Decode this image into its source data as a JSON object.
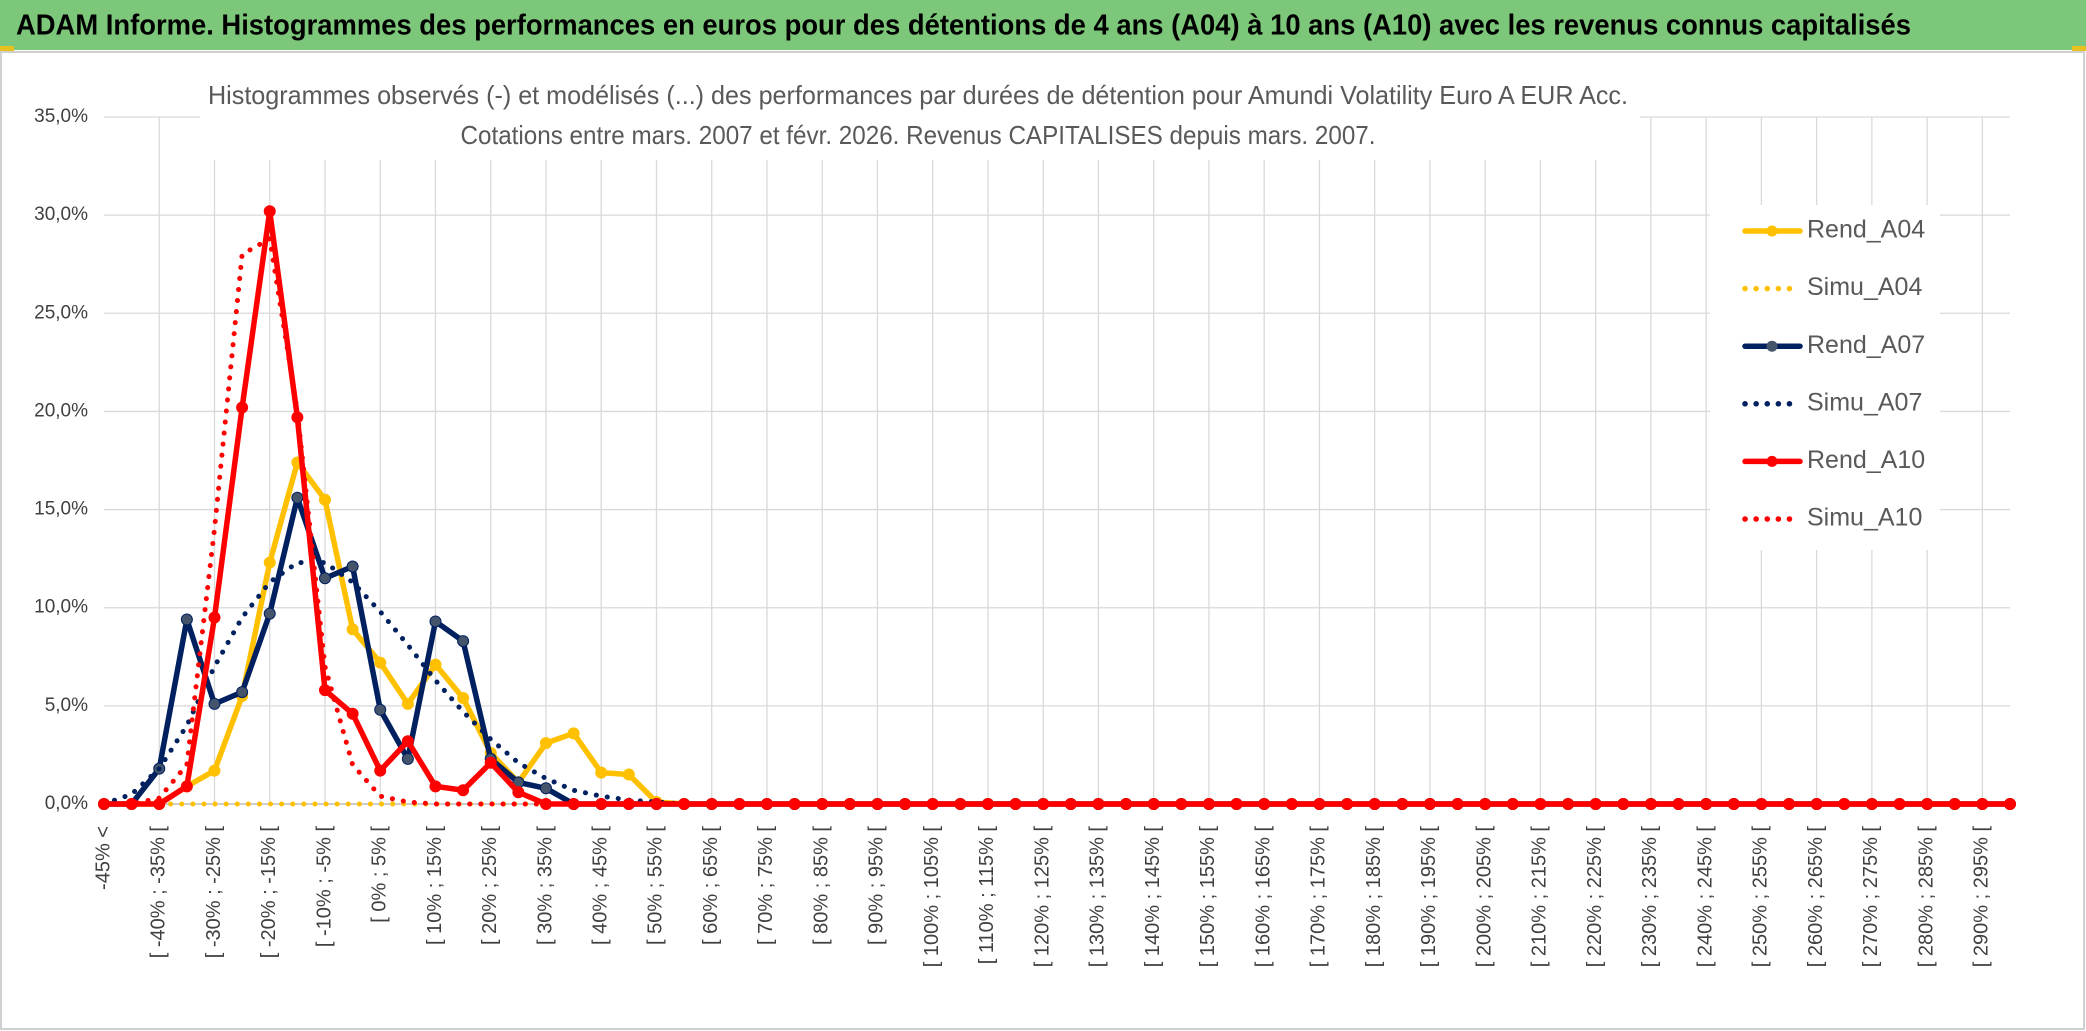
{
  "header": {
    "title": "ADAM Informe. Histogrammes des performances en euros pour des détentions de 4 ans (A04) à 10 ans (A10) avec les revenus connus capitalisés"
  },
  "chart_data": {
    "type": "line",
    "title": "Histogrammes observés (-) et modélisés (...) des performances par durées de détention pour Amundi Volatility Euro A EUR Acc.",
    "subtitle": "Cotations entre mars. 2007 et févr. 2026. Revenus CAPITALISES depuis mars. 2007.",
    "categories": [
      "-45% <",
      null,
      "[ -40% ; -35% [",
      null,
      "[ -30% ; -25% [",
      null,
      "[ -20% ; -15% [",
      null,
      "[ -10% ; -5% [",
      null,
      "[ 0% ; 5% [",
      null,
      "[ 10% ; 15% [",
      null,
      "[ 20% ; 25% [",
      null,
      "[ 30% ; 35% [",
      null,
      "[ 40% ; 45% [",
      null,
      "[ 50% ; 55% [",
      null,
      "[ 60% ; 65% [",
      null,
      "[ 70% ; 75% [",
      null,
      "[ 80% ; 85% [",
      null,
      "[ 90% ; 95% [",
      null,
      "[ 100% ; 105% [",
      null,
      "[ 110% ; 115% [",
      null,
      "[ 120% ; 125% [",
      null,
      "[ 130% ; 135% [",
      null,
      "[ 140% ; 145% [",
      null,
      "[ 150% ; 155% [",
      null,
      "[ 160% ; 165% [",
      null,
      "[ 170% ; 175% [",
      null,
      "[ 180% ; 185% [",
      null,
      "[ 190% ; 195% [",
      null,
      "[ 200% ; 205% [",
      null,
      "[ 210% ; 215% [",
      null,
      "[ 220% ; 225% [",
      null,
      "[ 230% ; 235% [",
      null,
      "[ 240% ; 245% [",
      null,
      "[ 250% ; 255% [",
      null,
      "[ 260% ; 265% [",
      null,
      "[ 270% ; 275% [",
      null,
      "[ 280% ; 285% [",
      null,
      "[ 290% ; 295% [",
      null
    ],
    "series": [
      {
        "name": "Rend_A04",
        "color": "#FFC000",
        "style": "solid",
        "marker": true,
        "values": [
          0,
          0,
          0,
          0.9,
          1.7,
          5.5,
          12.3,
          17.4,
          15.5,
          8.9,
          7.2,
          5.1,
          7.1,
          5.4,
          2.6,
          1.1,
          3.1,
          3.6,
          1.6,
          1.5,
          0.1,
          0,
          0,
          0,
          0,
          0,
          0,
          0,
          0,
          0,
          0,
          0,
          0,
          0,
          0,
          0,
          0,
          0,
          0,
          0,
          0,
          0,
          0,
          0,
          0,
          0,
          0,
          0,
          0,
          0,
          0,
          0,
          0,
          0,
          0,
          0,
          0,
          0,
          0,
          0,
          0,
          0,
          0,
          0,
          0,
          0,
          0,
          0,
          0,
          0
        ]
      },
      {
        "name": "Simu_A04",
        "color": "#FFC000",
        "style": "dotted",
        "marker": false,
        "values": [
          0,
          0,
          0,
          0,
          0,
          0,
          0,
          0,
          0,
          0,
          0,
          0,
          0,
          0,
          0,
          0,
          0,
          0,
          0,
          0,
          0,
          0,
          0,
          0,
          0,
          0,
          0,
          0,
          0,
          0,
          0,
          0,
          0,
          0,
          0,
          0,
          0,
          0,
          0,
          0,
          0,
          0,
          0,
          0,
          0,
          0,
          0,
          0,
          0,
          0,
          0,
          0,
          0,
          0,
          0,
          0,
          0,
          0,
          0,
          0,
          0,
          0,
          0,
          0,
          0,
          0,
          0,
          0,
          0,
          0
        ]
      },
      {
        "name": "Rend_A07",
        "color": "#002060",
        "style": "solid",
        "marker": true,
        "values": [
          0,
          0,
          1.8,
          9.4,
          5.1,
          5.7,
          9.7,
          15.6,
          11.5,
          12.1,
          4.8,
          2.3,
          9.3,
          8.3,
          2.3,
          1.1,
          0.8,
          0,
          0,
          0,
          0,
          0,
          0,
          0,
          0,
          0,
          0,
          0,
          0,
          0,
          0,
          0,
          0,
          0,
          0,
          0,
          0,
          0,
          0,
          0,
          0,
          0,
          0,
          0,
          0,
          0,
          0,
          0,
          0,
          0,
          0,
          0,
          0,
          0,
          0,
          0,
          0,
          0,
          0,
          0,
          0,
          0,
          0,
          0,
          0,
          0,
          0,
          0,
          0,
          0
        ]
      },
      {
        "name": "Simu_A07",
        "color": "#002060",
        "style": "dotted",
        "marker": false,
        "values": [
          0,
          0.5,
          1.8,
          4.0,
          7.0,
          9.5,
          11.3,
          12.3,
          12.3,
          11.3,
          9.8,
          8.1,
          6.3,
          4.7,
          3.3,
          2.1,
          1.3,
          0.7,
          0.4,
          0.2,
          0.1,
          0,
          0,
          0,
          0,
          0,
          0,
          0,
          0,
          0,
          0,
          0,
          0,
          0,
          0,
          0,
          0,
          0,
          0,
          0,
          0,
          0,
          0,
          0,
          0,
          0,
          0,
          0,
          0,
          0,
          0,
          0,
          0,
          0,
          0,
          0,
          0,
          0,
          0,
          0,
          0,
          0,
          0,
          0,
          0,
          0,
          0,
          0,
          0,
          0
        ]
      },
      {
        "name": "Rend_A10",
        "color": "#FF0000",
        "style": "solid",
        "marker": true,
        "values": [
          0,
          0,
          0,
          0.9,
          9.5,
          20.2,
          30.2,
          19.7,
          5.8,
          4.6,
          1.7,
          3.2,
          0.9,
          0.7,
          2.1,
          0.6,
          0,
          0,
          0,
          0,
          0,
          0,
          0,
          0,
          0,
          0,
          0,
          0,
          0,
          0,
          0,
          0,
          0,
          0,
          0,
          0,
          0,
          0,
          0,
          0,
          0,
          0,
          0,
          0,
          0,
          0,
          0,
          0,
          0,
          0,
          0,
          0,
          0,
          0,
          0,
          0,
          0,
          0,
          0,
          0,
          0,
          0,
          0,
          0,
          0,
          0,
          0,
          0,
          0,
          0
        ]
      },
      {
        "name": "Simu_A10",
        "color": "#FF0000",
        "style": "dotted",
        "marker": false,
        "values": [
          0,
          0,
          0.3,
          2.0,
          14,
          28,
          28.8,
          20,
          7,
          2,
          0.4,
          0.1,
          0,
          0,
          0,
          0,
          0,
          0,
          0,
          0,
          0,
          0,
          0,
          0,
          0,
          0,
          0,
          0,
          0,
          0,
          0,
          0,
          0,
          0,
          0,
          0,
          0,
          0,
          0,
          0,
          0,
          0,
          0,
          0,
          0,
          0,
          0,
          0,
          0,
          0,
          0,
          0,
          0,
          0,
          0,
          0,
          0,
          0,
          0,
          0,
          0,
          0,
          0,
          0,
          0,
          0,
          0,
          0,
          0,
          0
        ]
      }
    ],
    "ylim": [
      0,
      35
    ],
    "yticks": [
      {
        "value": 0,
        "label": "0,0%"
      },
      {
        "value": 5,
        "label": "5,0%"
      },
      {
        "value": 10,
        "label": "10,0%"
      },
      {
        "value": 15,
        "label": "15,0%"
      },
      {
        "value": 20,
        "label": "20,0%"
      },
      {
        "value": 25,
        "label": "25,0%"
      },
      {
        "value": 30,
        "label": "30,0%"
      },
      {
        "value": 35,
        "label": "35,0%"
      }
    ],
    "grid": true,
    "legend": "right"
  }
}
